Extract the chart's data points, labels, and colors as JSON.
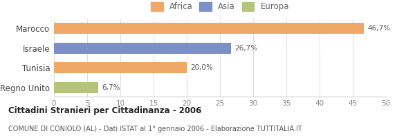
{
  "categories": [
    "Marocco",
    "Israele",
    "Tunisia",
    "Regno Unito"
  ],
  "values": [
    46.7,
    26.7,
    20.0,
    6.7
  ],
  "labels": [
    "46,7%",
    "26,7%",
    "20,0%",
    "6,7%"
  ],
  "colors": [
    "#f0a868",
    "#7b8fc9",
    "#f0a868",
    "#b5c47a"
  ],
  "legend": [
    {
      "label": "Africa",
      "color": "#f0a868"
    },
    {
      "label": "Asia",
      "color": "#7b8fc9"
    },
    {
      "label": "Europa",
      "color": "#b5c47a"
    }
  ],
  "xlim": [
    0,
    50
  ],
  "xticks": [
    0,
    5,
    10,
    15,
    20,
    25,
    30,
    35,
    40,
    45,
    50
  ],
  "title": "Cittadini Stranieri per Cittadinanza - 2006",
  "subtitle": "COMUNE DI CONIOLO (AL) - Dati ISTAT al 1° gennaio 2006 - Elaborazione TUTTITALIA.IT",
  "background_color": "#ffffff"
}
